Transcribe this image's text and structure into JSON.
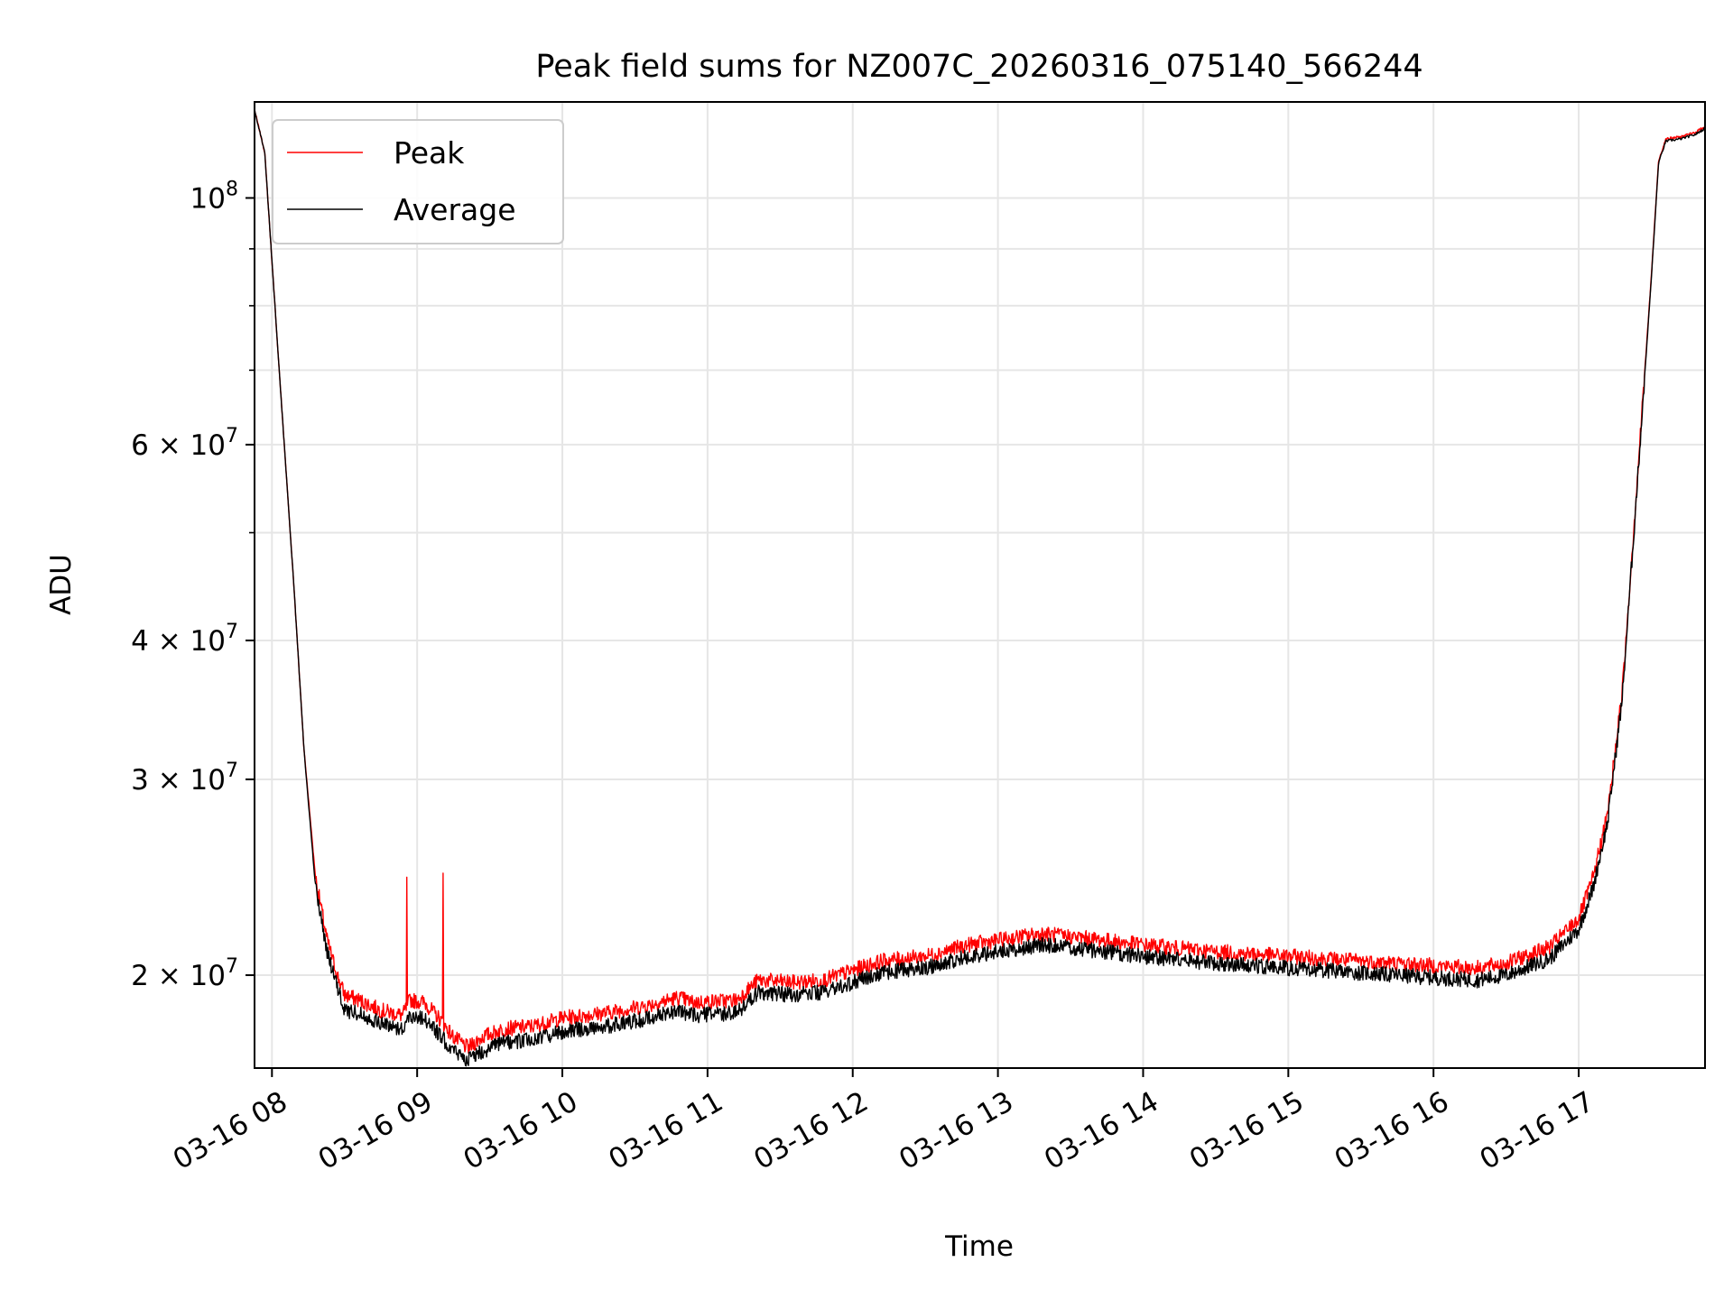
{
  "chart_data": {
    "type": "line",
    "title": "Peak field sums for NZ007C_20260316_075140_566244",
    "xlabel": "Time",
    "ylabel": "ADU",
    "y_scale": "log",
    "xlim_hours": [
      7.88,
      17.87
    ],
    "ylim": [
      16500000,
      122000000
    ],
    "grid": true,
    "legend_position": "top-left",
    "x_ticks": [
      {
        "value": 8,
        "label": "03-16 08"
      },
      {
        "value": 9,
        "label": "03-16 09"
      },
      {
        "value": 10,
        "label": "03-16 10"
      },
      {
        "value": 11,
        "label": "03-16 11"
      },
      {
        "value": 12,
        "label": "03-16 12"
      },
      {
        "value": 13,
        "label": "03-16 13"
      },
      {
        "value": 14,
        "label": "03-16 14"
      },
      {
        "value": 15,
        "label": "03-16 15"
      },
      {
        "value": 16,
        "label": "03-16 16"
      },
      {
        "value": 17,
        "label": "03-16 17"
      }
    ],
    "y_major_ticks": [
      {
        "value": 100000000,
        "base": "10",
        "exp": "8"
      },
      {
        "value": 60000000,
        "base": "6 × 10",
        "exp": "7"
      },
      {
        "value": 40000000,
        "base": "4 × 10",
        "exp": "7"
      },
      {
        "value": 30000000,
        "base": "3 × 10",
        "exp": "7"
      },
      {
        "value": 20000000,
        "base": "2 × 10",
        "exp": "7"
      }
    ],
    "y_minor_ticks": [
      90000000,
      80000000,
      70000000,
      50000000
    ],
    "series": [
      {
        "name": "Peak",
        "color": "#ff0000",
        "noise": 0.016,
        "spikes": [
          {
            "x": 8.93,
            "y": 24500000
          },
          {
            "x": 9.18,
            "y": 24700000
          }
        ],
        "points": [
          [
            7.88,
            120000000
          ],
          [
            7.95,
            110000000
          ],
          [
            8.05,
            70000000
          ],
          [
            8.15,
            45000000
          ],
          [
            8.22,
            32000000
          ],
          [
            8.3,
            24500000
          ],
          [
            8.38,
            21500000
          ],
          [
            8.45,
            20000000
          ],
          [
            8.5,
            19200000
          ],
          [
            8.6,
            19000000
          ],
          [
            8.75,
            18600000
          ],
          [
            8.9,
            18400000
          ],
          [
            8.95,
            19000000
          ],
          [
            9.05,
            18900000
          ],
          [
            9.15,
            18300000
          ],
          [
            9.25,
            17600000
          ],
          [
            9.35,
            17200000
          ],
          [
            9.45,
            17600000
          ],
          [
            9.6,
            17900000
          ],
          [
            9.8,
            18000000
          ],
          [
            10.0,
            18300000
          ],
          [
            10.3,
            18500000
          ],
          [
            10.6,
            18800000
          ],
          [
            10.8,
            19100000
          ],
          [
            10.9,
            18900000
          ],
          [
            11.2,
            19000000
          ],
          [
            11.35,
            19800000
          ],
          [
            11.6,
            19700000
          ],
          [
            11.8,
            19800000
          ],
          [
            12.0,
            20200000
          ],
          [
            12.2,
            20600000
          ],
          [
            12.5,
            20800000
          ],
          [
            12.8,
            21300000
          ],
          [
            13.0,
            21500000
          ],
          [
            13.3,
            21800000
          ],
          [
            13.6,
            21600000
          ],
          [
            14.0,
            21300000
          ],
          [
            14.5,
            21000000
          ],
          [
            15.0,
            20800000
          ],
          [
            15.5,
            20600000
          ],
          [
            16.0,
            20400000
          ],
          [
            16.3,
            20300000
          ],
          [
            16.5,
            20500000
          ],
          [
            16.8,
            21200000
          ],
          [
            17.0,
            22500000
          ],
          [
            17.1,
            24500000
          ],
          [
            17.2,
            28000000
          ],
          [
            17.3,
            36000000
          ],
          [
            17.4,
            55000000
          ],
          [
            17.5,
            85000000
          ],
          [
            17.55,
            108000000
          ],
          [
            17.6,
            113000000
          ],
          [
            17.7,
            113500000
          ],
          [
            17.8,
            114500000
          ],
          [
            17.87,
            116000000
          ]
        ]
      },
      {
        "name": "Average",
        "color": "#000000",
        "noise": 0.016,
        "spikes": [],
        "points": [
          [
            7.88,
            120000000
          ],
          [
            7.95,
            110000000
          ],
          [
            8.05,
            70000000
          ],
          [
            8.15,
            45000000
          ],
          [
            8.22,
            32000000
          ],
          [
            8.3,
            24000000
          ],
          [
            8.38,
            21000000
          ],
          [
            8.45,
            19500000
          ],
          [
            8.5,
            18600000
          ],
          [
            8.6,
            18500000
          ],
          [
            8.75,
            18100000
          ],
          [
            8.9,
            17900000
          ],
          [
            8.95,
            18400000
          ],
          [
            9.05,
            18300000
          ],
          [
            9.15,
            17700000
          ],
          [
            9.25,
            17100000
          ],
          [
            9.35,
            16800000
          ],
          [
            9.45,
            17100000
          ],
          [
            9.6,
            17400000
          ],
          [
            9.8,
            17500000
          ],
          [
            10.0,
            17800000
          ],
          [
            10.3,
            18000000
          ],
          [
            10.6,
            18300000
          ],
          [
            10.8,
            18600000
          ],
          [
            10.9,
            18400000
          ],
          [
            11.2,
            18500000
          ],
          [
            11.35,
            19300000
          ],
          [
            11.6,
            19200000
          ],
          [
            11.8,
            19300000
          ],
          [
            12.0,
            19700000
          ],
          [
            12.2,
            20100000
          ],
          [
            12.5,
            20300000
          ],
          [
            12.8,
            20800000
          ],
          [
            13.0,
            21000000
          ],
          [
            13.3,
            21300000
          ],
          [
            13.6,
            21100000
          ],
          [
            14.0,
            20800000
          ],
          [
            14.5,
            20500000
          ],
          [
            15.0,
            20300000
          ],
          [
            15.5,
            20100000
          ],
          [
            16.0,
            19900000
          ],
          [
            16.3,
            19800000
          ],
          [
            16.5,
            20000000
          ],
          [
            16.8,
            20700000
          ],
          [
            17.0,
            22000000
          ],
          [
            17.1,
            24000000
          ],
          [
            17.2,
            27500000
          ],
          [
            17.3,
            35500000
          ],
          [
            17.4,
            54500000
          ],
          [
            17.5,
            84500000
          ],
          [
            17.55,
            107500000
          ],
          [
            17.6,
            112500000
          ],
          [
            17.7,
            113000000
          ],
          [
            17.8,
            114000000
          ],
          [
            17.87,
            115500000
          ]
        ]
      }
    ]
  }
}
